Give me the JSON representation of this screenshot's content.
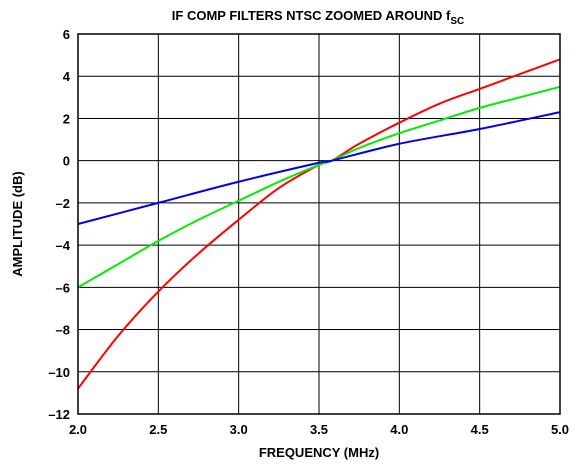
{
  "chart_data": {
    "type": "line",
    "title": "IF COMP FILTERS NTSC ZOOMED AROUND f",
    "title_subscript": "SC",
    "xlabel": "FREQUENCY (MHz)",
    "ylabel": "AMPLITUDE (dB)",
    "xlim": [
      2.0,
      5.0
    ],
    "ylim": [
      -12,
      6
    ],
    "xticks": [
      2.0,
      2.5,
      3.0,
      3.5,
      4.0,
      4.5,
      5.0
    ],
    "xtick_labels": [
      "2.0",
      "2.5",
      "3.0",
      "3.5",
      "4.0",
      "4.5",
      "5.0"
    ],
    "yticks": [
      6,
      4,
      2,
      0,
      -2,
      -4,
      -6,
      -8,
      -10,
      -12
    ],
    "ytick_labels": [
      "6",
      "4",
      "2",
      "0",
      "–2",
      "–4",
      "–6",
      "–8",
      "–10",
      "–12"
    ],
    "grid": true,
    "series": [
      {
        "color": "#ff0000",
        "x": [
          2.0,
          2.25,
          2.5,
          2.75,
          3.0,
          3.25,
          3.5,
          3.58,
          3.75,
          4.0,
          4.25,
          4.5,
          4.75,
          5.0
        ],
        "y": [
          -10.8,
          -8.3,
          -6.2,
          -4.4,
          -2.8,
          -1.3,
          -0.2,
          0.0,
          0.8,
          1.8,
          2.7,
          3.4,
          4.1,
          4.8
        ]
      },
      {
        "color": "#00ee00",
        "x": [
          2.0,
          2.25,
          2.5,
          2.75,
          3.0,
          3.25,
          3.5,
          3.58,
          3.75,
          4.0,
          4.25,
          4.5,
          4.75,
          5.0
        ],
        "y": [
          -6.0,
          -4.9,
          -3.8,
          -2.8,
          -1.9,
          -1.0,
          -0.2,
          0.0,
          0.6,
          1.3,
          1.9,
          2.5,
          3.0,
          3.5
        ]
      },
      {
        "color": "#0000ee",
        "x": [
          2.0,
          2.5,
          3.0,
          3.5,
          3.58,
          4.0,
          4.5,
          5.0
        ],
        "y": [
          -3.0,
          -2.0,
          -1.0,
          -0.1,
          0.0,
          0.8,
          1.5,
          2.3
        ]
      }
    ]
  }
}
